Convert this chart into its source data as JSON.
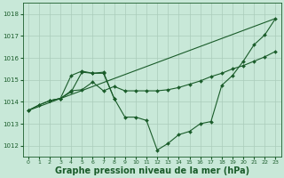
{
  "background_color": "#c8e8d8",
  "grid_color": "#aaccbb",
  "line_color": "#1a5c2a",
  "marker_color": "#1a5c2a",
  "xlabel": "Graphe pression niveau de la mer (hPa)",
  "xlabel_fontsize": 7,
  "ylim": [
    1011.5,
    1018.5
  ],
  "xlim": [
    -0.5,
    23.5
  ],
  "yticks": [
    1012,
    1013,
    1014,
    1015,
    1016,
    1017,
    1018
  ],
  "xticks": [
    0,
    1,
    2,
    3,
    4,
    5,
    6,
    7,
    8,
    9,
    10,
    11,
    12,
    13,
    14,
    15,
    16,
    17,
    18,
    19,
    20,
    21,
    22,
    23
  ],
  "series1_x": [
    0,
    1,
    2,
    3,
    4,
    5,
    6,
    7,
    8,
    9,
    10,
    11,
    12,
    13,
    14,
    15,
    16,
    17,
    18,
    19,
    20,
    21,
    22,
    23
  ],
  "series1_y": [
    1013.6,
    1013.85,
    1014.05,
    1014.15,
    1014.45,
    1015.35,
    1015.3,
    1015.3,
    1014.15,
    1013.3,
    1013.3,
    1013.15,
    1011.8,
    1012.1,
    1012.5,
    1012.65,
    1013.0,
    1013.1,
    1014.75,
    1015.2,
    1015.85,
    1016.6,
    1017.05,
    1017.8
  ],
  "series2_x": [
    0,
    23
  ],
  "series2_y": [
    1013.6,
    1017.8
  ],
  "series3_x": [
    0,
    1,
    2,
    3,
    4,
    5,
    6,
    7,
    8,
    9,
    10,
    11,
    12,
    13,
    14,
    15,
    16,
    17,
    18,
    19,
    20,
    21,
    22,
    23
  ],
  "series3_y": [
    1013.6,
    1013.85,
    1014.05,
    1014.15,
    1014.5,
    1014.55,
    1014.9,
    1014.5,
    1014.7,
    1014.5,
    1014.5,
    1014.5,
    1014.5,
    1014.55,
    1014.65,
    1014.8,
    1014.95,
    1015.15,
    1015.3,
    1015.5,
    1015.65,
    1015.85,
    1016.05,
    1016.3
  ],
  "series4_x": [
    2,
    3,
    4,
    5,
    6,
    7,
    8
  ],
  "series4_y": [
    1014.05,
    1014.15,
    1015.2,
    1015.4,
    1015.3,
    1015.35,
    1014.15
  ]
}
